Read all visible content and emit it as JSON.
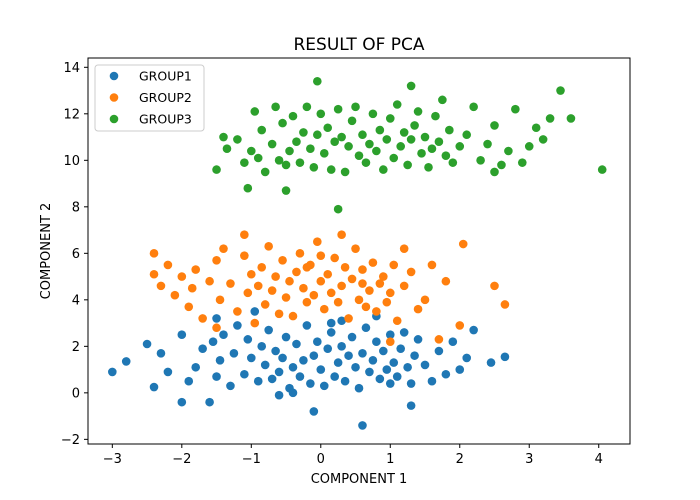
{
  "chart_data": {
    "type": "scatter",
    "title": "RESULT OF PCA",
    "xlabel": "COMPONENT 1",
    "ylabel": "COMPONENT 2",
    "xlim": [
      -3.35,
      4.45
    ],
    "ylim": [
      -2.2,
      14.4
    ],
    "xticks": [
      -3,
      -2,
      -1,
      0,
      1,
      2,
      3,
      4
    ],
    "yticks": [
      -2,
      0,
      2,
      4,
      6,
      8,
      10,
      12,
      14
    ],
    "xtick_labels": [
      "−3",
      "−2",
      "−1",
      "0",
      "1",
      "2",
      "3",
      "4"
    ],
    "ytick_labels": [
      "−2",
      "0",
      "2",
      "4",
      "6",
      "8",
      "10",
      "12",
      "14"
    ],
    "grid": false,
    "legend_position": "top-left",
    "series": [
      {
        "name": "GROUP1",
        "color": "#1f77b4",
        "x": [
          -3.0,
          -2.8,
          -2.5,
          -2.4,
          -2.3,
          -2.2,
          -2.0,
          -1.9,
          -1.8,
          -1.7,
          -1.6,
          -1.55,
          -1.5,
          -1.45,
          -1.4,
          -1.3,
          -1.25,
          -1.2,
          -1.1,
          -1.05,
          -1.0,
          -0.95,
          -0.9,
          -0.85,
          -0.8,
          -0.75,
          -0.7,
          -0.65,
          -0.6,
          -0.55,
          -0.5,
          -0.45,
          -0.4,
          -0.35,
          -0.3,
          -0.25,
          -0.2,
          -0.15,
          -0.1,
          -0.05,
          0.0,
          0.05,
          0.1,
          0.15,
          0.2,
          0.25,
          0.3,
          0.35,
          0.4,
          0.45,
          0.5,
          0.55,
          0.6,
          0.65,
          0.7,
          0.75,
          0.8,
          0.85,
          0.9,
          0.95,
          1.0,
          1.05,
          1.1,
          1.15,
          1.2,
          1.25,
          1.3,
          1.35,
          1.4,
          1.5,
          1.6,
          1.7,
          1.8,
          1.9,
          2.0,
          2.1,
          2.2,
          2.45,
          2.65,
          -0.1,
          0.6,
          1.3,
          -1.5,
          -2.0,
          0.3,
          -0.4,
          0.8,
          1.0,
          -0.6,
          0.15
        ],
        "y": [
          0.9,
          1.35,
          2.1,
          0.25,
          1.7,
          0.9,
          -0.4,
          0.5,
          1.1,
          1.9,
          -0.4,
          2.2,
          0.7,
          1.4,
          2.5,
          0.3,
          1.7,
          2.9,
          0.8,
          2.3,
          1.5,
          3.5,
          0.5,
          2.0,
          1.2,
          2.7,
          0.6,
          1.8,
          0.9,
          1.5,
          2.4,
          0.2,
          1.1,
          2.1,
          0.7,
          1.4,
          2.9,
          0.4,
          1.6,
          2.2,
          1.0,
          0.3,
          1.9,
          2.6,
          0.7,
          1.3,
          2.0,
          0.5,
          1.6,
          2.4,
          1.1,
          0.2,
          1.7,
          2.8,
          0.9,
          1.4,
          2.2,
          0.6,
          1.8,
          1.0,
          2.5,
          1.3,
          0.7,
          1.9,
          2.6,
          1.1,
          0.4,
          1.6,
          2.3,
          1.2,
          0.5,
          1.8,
          0.8,
          2.2,
          1.0,
          1.5,
          2.7,
          1.3,
          1.55,
          -0.8,
          -1.4,
          -0.55,
          3.2,
          2.5,
          3.1,
          0.0,
          3.3,
          0.4,
          -0.1,
          3.0
        ]
      },
      {
        "name": "GROUP2",
        "color": "#ff7f0e",
        "x": [
          -2.4,
          -2.4,
          -2.3,
          -2.2,
          -2.1,
          -2.0,
          -1.9,
          -1.85,
          -1.8,
          -1.7,
          -1.6,
          -1.5,
          -1.45,
          -1.4,
          -1.3,
          -1.2,
          -1.1,
          -1.05,
          -1.0,
          -0.95,
          -0.9,
          -0.85,
          -0.8,
          -0.75,
          -0.7,
          -0.65,
          -0.6,
          -0.55,
          -0.5,
          -0.45,
          -0.4,
          -0.35,
          -0.3,
          -0.25,
          -0.2,
          -0.15,
          -0.1,
          -0.05,
          0.0,
          0.05,
          0.1,
          0.15,
          0.2,
          0.25,
          0.3,
          0.35,
          0.4,
          0.45,
          0.5,
          0.55,
          0.6,
          0.65,
          0.7,
          0.75,
          0.8,
          0.85,
          0.9,
          0.95,
          1.0,
          1.05,
          1.1,
          1.2,
          1.3,
          1.4,
          1.5,
          1.6,
          1.7,
          1.8,
          2.0,
          2.05,
          2.5,
          2.65,
          -1.1,
          0.3,
          1.2,
          -0.2,
          0.6,
          -1.5,
          1.0,
          0.0
        ],
        "y": [
          6.0,
          5.1,
          4.6,
          5.5,
          4.2,
          5.0,
          3.7,
          4.5,
          5.3,
          3.2,
          4.8,
          5.7,
          4.0,
          6.2,
          4.7,
          3.5,
          5.9,
          4.3,
          5.1,
          3.0,
          4.6,
          5.4,
          3.8,
          6.3,
          4.4,
          5.0,
          3.4,
          5.7,
          4.1,
          4.8,
          3.3,
          5.2,
          6.0,
          4.5,
          3.9,
          5.5,
          4.2,
          6.5,
          4.8,
          3.6,
          5.1,
          4.3,
          5.8,
          3.9,
          4.6,
          5.4,
          3.2,
          4.9,
          6.2,
          4.0,
          5.3,
          3.7,
          4.4,
          5.6,
          3.5,
          4.7,
          5.0,
          3.9,
          4.3,
          5.5,
          3.1,
          4.6,
          5.2,
          3.6,
          4.0,
          5.5,
          2.3,
          4.8,
          2.9,
          6.4,
          4.6,
          3.8,
          6.8,
          6.8,
          6.2,
          5.4,
          4.7,
          2.8,
          2.2,
          5.9
        ]
      },
      {
        "name": "GROUP3",
        "color": "#2ca02c",
        "x": [
          -1.5,
          -1.4,
          -1.35,
          -1.2,
          -1.1,
          -1.0,
          -0.95,
          -0.9,
          -0.85,
          -0.8,
          -0.7,
          -0.65,
          -0.6,
          -0.55,
          -0.5,
          -0.45,
          -0.4,
          -0.35,
          -0.3,
          -0.25,
          -0.2,
          -0.15,
          -0.1,
          -0.05,
          0.0,
          0.05,
          0.1,
          0.15,
          0.2,
          0.25,
          0.3,
          0.35,
          0.4,
          0.45,
          0.5,
          0.55,
          0.6,
          0.65,
          0.7,
          0.75,
          0.8,
          0.85,
          0.9,
          0.95,
          1.0,
          1.05,
          1.1,
          1.15,
          1.2,
          1.25,
          1.3,
          1.35,
          1.4,
          1.45,
          1.5,
          1.55,
          1.6,
          1.65,
          1.7,
          1.75,
          1.8,
          1.85,
          1.9,
          2.0,
          2.1,
          2.2,
          2.3,
          2.4,
          2.5,
          2.6,
          2.7,
          2.8,
          2.9,
          3.0,
          3.1,
          3.2,
          3.3,
          3.45,
          3.6,
          4.05,
          -0.05,
          0.25,
          -0.5,
          1.3,
          -1.05,
          2.5
        ],
        "y": [
          9.6,
          11.0,
          10.5,
          10.9,
          9.9,
          10.4,
          12.1,
          10.1,
          11.3,
          9.5,
          10.7,
          12.3,
          10.0,
          11.6,
          9.8,
          10.4,
          11.9,
          10.8,
          9.9,
          11.2,
          12.3,
          10.5,
          9.7,
          11.1,
          12.0,
          10.3,
          11.4,
          9.6,
          10.8,
          12.2,
          11.0,
          9.5,
          10.6,
          11.7,
          12.3,
          10.2,
          11.1,
          9.9,
          10.7,
          12.0,
          10.4,
          11.3,
          9.6,
          10.9,
          11.8,
          10.1,
          12.4,
          10.6,
          11.2,
          9.8,
          10.9,
          11.5,
          12.1,
          10.3,
          11.0,
          9.7,
          10.5,
          11.9,
          10.8,
          12.6,
          10.2,
          11.3,
          9.9,
          10.6,
          11.1,
          12.3,
          10.0,
          10.7,
          11.5,
          9.8,
          10.4,
          12.2,
          9.9,
          10.6,
          11.4,
          10.9,
          11.8,
          13.0,
          11.8,
          9.6,
          13.4,
          7.9,
          8.7,
          13.2,
          8.8,
          9.5
        ]
      }
    ]
  }
}
